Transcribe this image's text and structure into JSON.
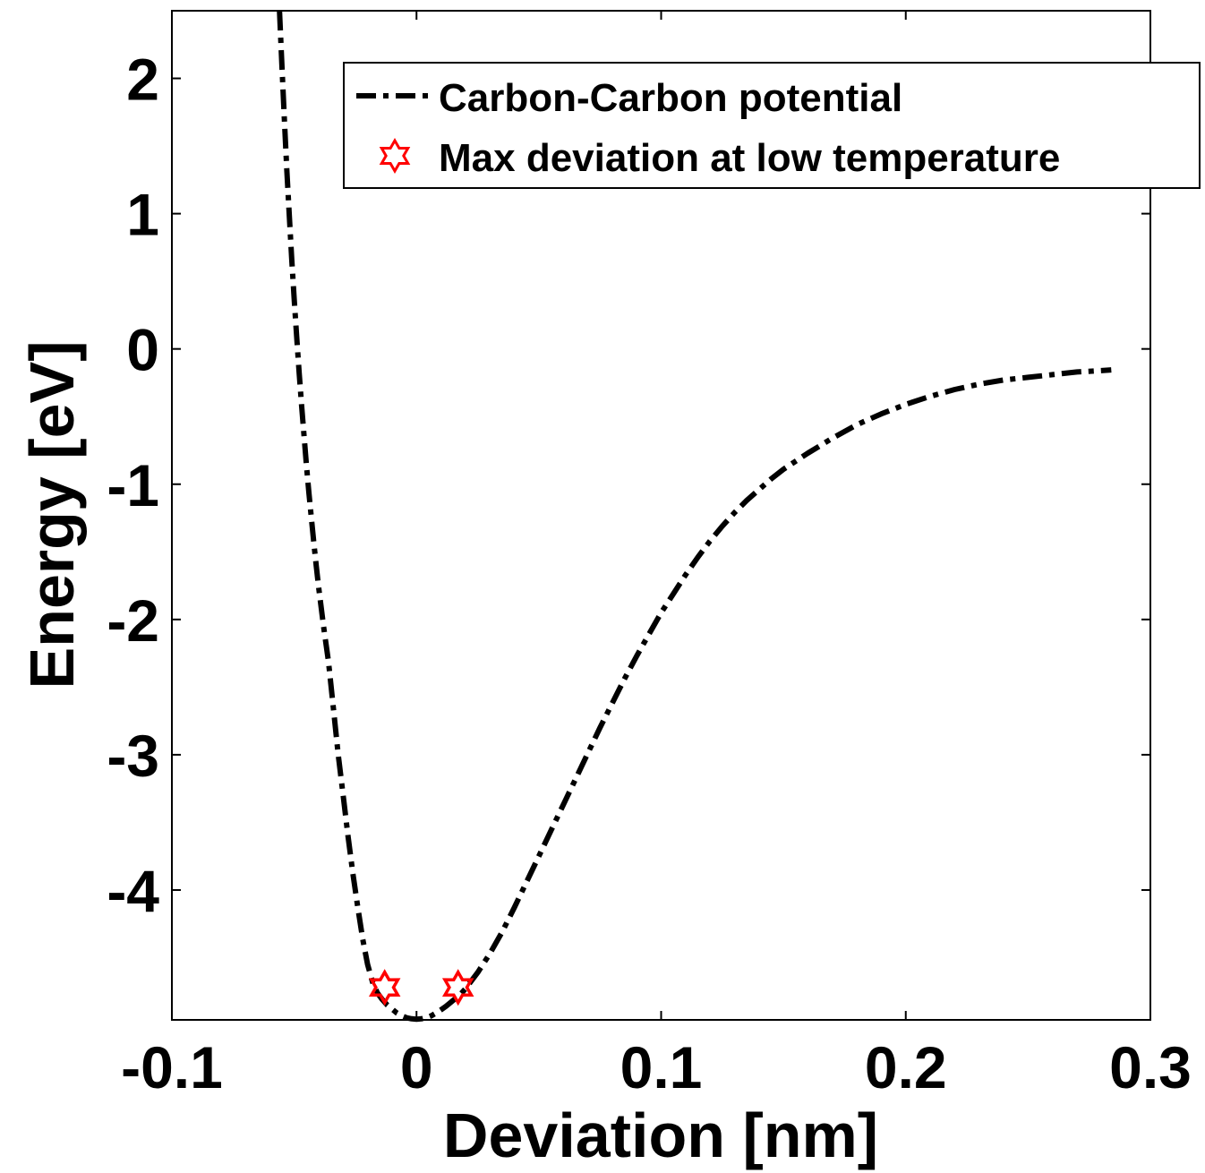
{
  "chart_data": {
    "type": "line",
    "title": "",
    "xlabel": "Deviation [nm]",
    "ylabel": "Energy [eV]",
    "xlim": [
      -0.1,
      0.3
    ],
    "ylim": [
      -4.96,
      2.5
    ],
    "xticks": [
      -0.1,
      0,
      0.1,
      0.2,
      0.3
    ],
    "xtick_labels": [
      "-0.1",
      "0",
      "0.1",
      "0.2",
      "0.3"
    ],
    "yticks": [
      2,
      1,
      0,
      -1,
      -2,
      -3,
      -4
    ],
    "ytick_labels": [
      "2",
      "1",
      "0",
      "-1",
      "-2",
      "-3",
      "-4"
    ],
    "grid": false,
    "legend_position": "top-right",
    "series": [
      {
        "name": "Carbon-Carbon potential",
        "style": "dash-dot",
        "color": "#000000",
        "x": [
          -0.056,
          -0.0555,
          -0.055,
          -0.054,
          -0.053,
          -0.052,
          -0.051,
          -0.05,
          -0.049,
          -0.048,
          -0.047,
          -0.046,
          -0.045,
          -0.044,
          -0.043,
          -0.042,
          -0.041,
          -0.04,
          -0.038,
          -0.036,
          -0.034,
          -0.032,
          -0.03,
          -0.028,
          -0.026,
          -0.024,
          -0.022,
          -0.02,
          -0.018,
          -0.016,
          -0.014,
          -0.012,
          -0.01,
          -0.008,
          -0.006,
          -0.004,
          -0.002,
          0,
          0.002,
          0.004,
          0.006,
          0.008,
          0.01,
          0.012,
          0.014,
          0.016,
          0.018,
          0.02,
          0.025,
          0.03,
          0.035,
          0.04,
          0.045,
          0.05,
          0.055,
          0.06,
          0.065,
          0.07,
          0.075,
          0.08,
          0.085,
          0.09,
          0.095,
          0.1,
          0.105,
          0.11,
          0.115,
          0.12,
          0.125,
          0.13,
          0.135,
          0.14,
          0.145,
          0.15,
          0.16,
          0.17,
          0.18,
          0.19,
          0.2,
          0.21,
          0.22,
          0.23,
          0.24,
          0.25,
          0.26,
          0.27,
          0.28,
          0.284
        ],
        "y": [
          2.5,
          2.29,
          2.08,
          1.69,
          1.32,
          0.98,
          0.66,
          0.37,
          0.09,
          -0.17,
          -0.41,
          -0.64,
          -0.86,
          -1.06,
          -1.25,
          -1.43,
          -1.6,
          -1.76,
          -2.05,
          -2.31,
          -2.65,
          -3.0,
          -3.3,
          -3.6,
          -3.88,
          -4.13,
          -4.36,
          -4.55,
          -4.68,
          -4.76,
          -4.81,
          -4.85,
          -4.88,
          -4.91,
          -4.93,
          -4.945,
          -4.952,
          -4.955,
          -4.952,
          -4.945,
          -4.93,
          -4.91,
          -4.885,
          -4.86,
          -4.83,
          -4.8,
          -4.77,
          -4.73,
          -4.61,
          -4.47,
          -4.31,
          -4.13,
          -3.94,
          -3.75,
          -3.56,
          -3.37,
          -3.18,
          -2.99,
          -2.8,
          -2.62,
          -2.44,
          -2.27,
          -2.11,
          -1.95,
          -1.81,
          -1.67,
          -1.54,
          -1.42,
          -1.31,
          -1.21,
          -1.12,
          -1.04,
          -0.96,
          -0.89,
          -0.77,
          -0.66,
          -0.56,
          -0.48,
          -0.41,
          -0.35,
          -0.3,
          -0.26,
          -0.23,
          -0.21,
          -0.19,
          -0.17,
          -0.16,
          -0.155
        ]
      },
      {
        "name": "Max deviation at low temperature",
        "style": "star-marker",
        "color": "#ff0000",
        "x": [
          -0.013,
          0.017
        ],
        "y": [
          -4.72,
          -4.72
        ]
      }
    ]
  }
}
